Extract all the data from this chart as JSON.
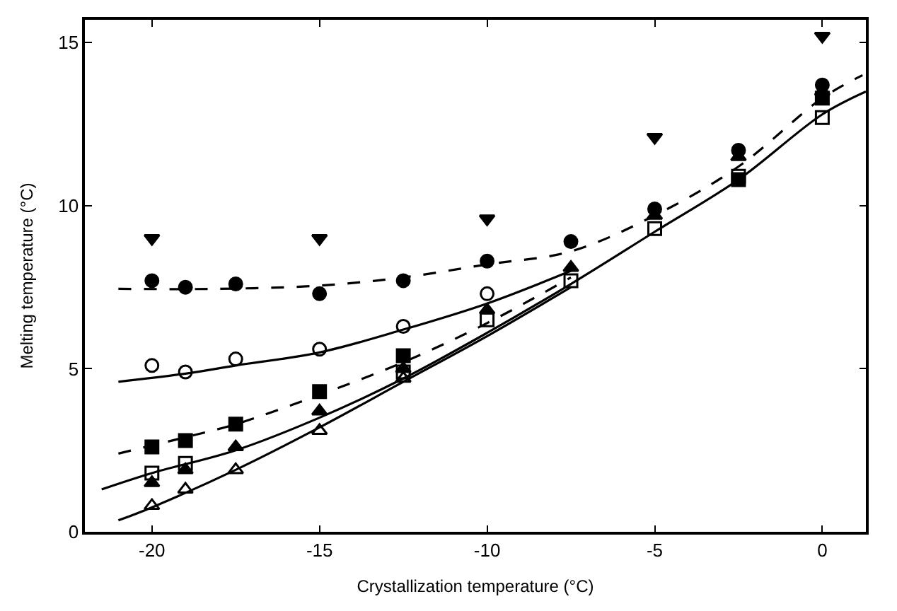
{
  "chart_data": {
    "type": "scatter",
    "xlabel": "Crystallization temperature (°C)",
    "ylabel": "Melting temperature (°C)",
    "xlim": [
      -22,
      1.3
    ],
    "ylim": [
      0,
      15.7
    ],
    "xticks": [
      -20,
      -15,
      -10,
      -5,
      0
    ],
    "yticks": [
      0,
      5,
      10,
      15
    ],
    "series": [
      {
        "color": "#000000",
        "marker": "triangle-down",
        "x": [
          -20,
          -15,
          -10,
          -5,
          0
        ],
        "values": [
          9.0,
          9.0,
          9.6,
          12.1,
          15.2
        ]
      },
      {
        "color": "#000000",
        "marker": "circle",
        "x": [
          -20,
          -19,
          -17.5,
          -15,
          -12.5,
          -10,
          -7.5,
          -5,
          -2.5,
          0
        ],
        "values": [
          7.7,
          7.5,
          7.6,
          7.3,
          7.7,
          8.3,
          8.9,
          9.9,
          11.7,
          13.7
        ]
      },
      {
        "color": "#000000",
        "marker": "circle-open",
        "x": [
          -20,
          -19,
          -17.5,
          -15,
          -12.5,
          -10
        ],
        "values": [
          5.1,
          4.9,
          5.3,
          5.6,
          6.3,
          7.3
        ]
      },
      {
        "color": "#000000",
        "marker": "square",
        "x": [
          -20,
          -19,
          -17.5,
          -15,
          -12.5,
          -10,
          -7.5,
          -5,
          -2.5,
          0
        ],
        "values": [
          2.6,
          2.8,
          3.3,
          4.3,
          5.4,
          null,
          null,
          null,
          10.8,
          13.3
        ]
      },
      {
        "color": "#000000",
        "marker": "square-open",
        "x": [
          -20,
          -19,
          -15,
          -12.5,
          -10,
          -7.5,
          -5,
          -2.5,
          0
        ],
        "values": [
          1.8,
          2.1,
          null,
          4.9,
          6.5,
          7.7,
          9.3,
          10.9,
          12.7
        ]
      },
      {
        "color": "#000000",
        "marker": "triangle",
        "x": [
          -20,
          -19,
          -17.5,
          -15,
          -12.5,
          -10,
          -7.5,
          -5,
          -2.5,
          0
        ],
        "values": [
          1.5,
          1.9,
          2.6,
          3.7,
          5.0,
          6.8,
          8.1,
          9.7,
          11.5,
          13.5
        ]
      },
      {
        "color": "#000000",
        "marker": "triangle-open",
        "x": [
          -20,
          -19,
          -17.5,
          -15,
          -12.5
        ],
        "values": [
          0.8,
          1.3,
          1.9,
          3.1,
          4.7
        ]
      },
      {
        "type": "line",
        "color": "#000000",
        "marker": "none",
        "line_style": "dashed",
        "x": [
          -21,
          -18,
          -15,
          -12.5,
          -10,
          -7.5,
          -5,
          -2.5,
          0,
          1.2
        ],
        "values": [
          7.45,
          7.45,
          7.55,
          7.8,
          8.2,
          8.6,
          9.7,
          11.2,
          13.3,
          14.0
        ]
      },
      {
        "type": "line",
        "color": "#000000",
        "marker": "none",
        "line_style": "solid",
        "x": [
          -21,
          -19,
          -17.5,
          -15,
          -12.5,
          -10,
          -7.5
        ],
        "values": [
          4.6,
          4.85,
          5.1,
          5.5,
          6.2,
          7.0,
          8.0
        ]
      },
      {
        "type": "line",
        "color": "#000000",
        "marker": "none",
        "line_style": "dashed",
        "x": [
          -21,
          -19,
          -17.5,
          -15,
          -12.5,
          -10,
          -7.5
        ],
        "values": [
          2.4,
          2.9,
          3.3,
          4.2,
          5.2,
          6.4,
          7.8
        ]
      },
      {
        "type": "line",
        "color": "#000000",
        "marker": "none",
        "line_style": "solid",
        "x": [
          -21.5,
          -20,
          -17.5,
          -15,
          -12.5,
          -10,
          -7.5,
          -5,
          -2.5,
          0,
          1.3
        ],
        "values": [
          1.3,
          1.8,
          2.5,
          3.5,
          4.7,
          6.1,
          7.6,
          9.2,
          10.8,
          12.8,
          13.5
        ]
      },
      {
        "type": "line",
        "color": "#000000",
        "marker": "none",
        "line_style": "solid",
        "x": [
          -21,
          -20,
          -17.5,
          -15,
          -12.5,
          -10,
          -7.5
        ],
        "values": [
          0.35,
          0.75,
          1.9,
          3.2,
          4.6,
          6.0,
          7.5
        ]
      }
    ]
  }
}
